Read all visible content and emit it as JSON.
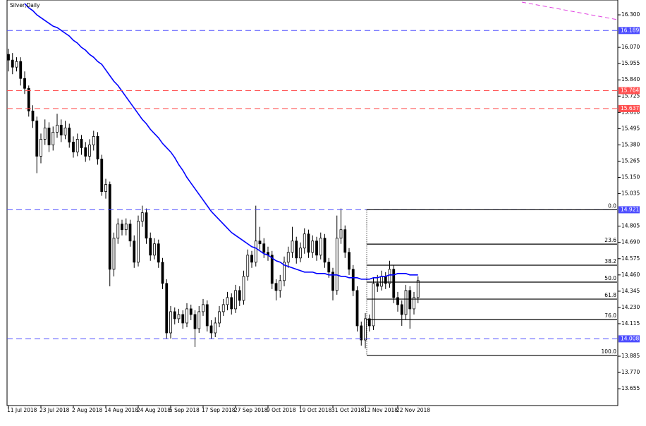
{
  "chart_data": {
    "type": "candlestick",
    "title": "Silver,Daily",
    "categories": [
      "11 Jul 2018",
      null,
      null,
      null,
      null,
      null,
      null,
      null,
      "23 Jul 2018",
      null,
      null,
      null,
      null,
      null,
      null,
      null,
      "2 Aug 2018",
      null,
      null,
      null,
      null,
      null,
      null,
      null,
      "14 Aug 2018",
      null,
      null,
      null,
      null,
      null,
      null,
      null,
      "24 Aug 2018",
      null,
      null,
      null,
      null,
      null,
      null,
      null,
      "5 Sep 2018",
      null,
      null,
      null,
      null,
      null,
      null,
      null,
      "17 Sep 2018",
      null,
      null,
      null,
      null,
      null,
      null,
      null,
      "27 Sep 2018",
      null,
      null,
      null,
      null,
      null,
      null,
      null,
      "9 Oct 2018",
      null,
      null,
      null,
      null,
      null,
      null,
      null,
      "19 Oct 2018",
      null,
      null,
      null,
      null,
      null,
      null,
      null,
      "31 Oct 2018",
      null,
      null,
      null,
      null,
      null,
      null,
      null,
      "12 Nov 2018",
      null,
      null,
      null,
      null,
      null,
      null,
      null,
      "22 Nov 2018",
      null,
      null,
      null,
      null,
      null
    ],
    "ohlc": [
      [
        16.02,
        16.06,
        15.9,
        15.98
      ],
      [
        15.98,
        16.03,
        15.88,
        15.93
      ],
      [
        15.93,
        16.0,
        15.9,
        15.97
      ],
      [
        15.97,
        16.0,
        15.8,
        15.85
      ],
      [
        15.85,
        15.9,
        15.74,
        15.78
      ],
      [
        15.78,
        15.8,
        15.58,
        15.62
      ],
      [
        15.62,
        15.66,
        15.5,
        15.55
      ],
      [
        15.55,
        15.58,
        15.18,
        15.3
      ],
      [
        15.3,
        15.46,
        15.25,
        15.42
      ],
      [
        15.42,
        15.56,
        15.38,
        15.5
      ],
      [
        15.5,
        15.54,
        15.33,
        15.38
      ],
      [
        15.38,
        15.51,
        15.34,
        15.47
      ],
      [
        15.47,
        15.6,
        15.43,
        15.52
      ],
      [
        15.52,
        15.56,
        15.4,
        15.45
      ],
      [
        15.45,
        15.55,
        15.42,
        15.5
      ],
      [
        15.5,
        15.53,
        15.36,
        15.4
      ],
      [
        15.4,
        15.44,
        15.29,
        15.33
      ],
      [
        15.33,
        15.46,
        15.3,
        15.42
      ],
      [
        15.42,
        15.45,
        15.31,
        15.36
      ],
      [
        15.36,
        15.4,
        15.26,
        15.3
      ],
      [
        15.3,
        15.42,
        15.27,
        15.38
      ],
      [
        15.38,
        15.48,
        15.34,
        15.44
      ],
      [
        15.44,
        15.47,
        15.24,
        15.28
      ],
      [
        15.28,
        15.31,
        15.02,
        15.05
      ],
      [
        15.05,
        15.14,
        15.0,
        15.1
      ],
      [
        15.1,
        15.12,
        14.38,
        14.5
      ],
      [
        14.5,
        14.76,
        14.45,
        14.72
      ],
      [
        14.72,
        14.86,
        14.68,
        14.82
      ],
      [
        14.82,
        14.85,
        14.74,
        14.78
      ],
      [
        14.78,
        14.86,
        14.74,
        14.82
      ],
      [
        14.82,
        14.85,
        14.66,
        14.7
      ],
      [
        14.7,
        14.74,
        14.51,
        14.55
      ],
      [
        14.55,
        14.88,
        14.52,
        14.84
      ],
      [
        14.84,
        14.95,
        14.8,
        14.9
      ],
      [
        14.9,
        14.93,
        14.68,
        14.72
      ],
      [
        14.72,
        14.76,
        14.56,
        14.6
      ],
      [
        14.6,
        14.72,
        14.57,
        14.68
      ],
      [
        14.68,
        14.71,
        14.51,
        14.55
      ],
      [
        14.55,
        14.58,
        14.36,
        14.4
      ],
      [
        14.4,
        14.43,
        14.01,
        14.05
      ],
      [
        14.05,
        14.24,
        14.01,
        14.2
      ],
      [
        14.2,
        14.23,
        14.11,
        14.15
      ],
      [
        14.15,
        14.22,
        14.12,
        14.18
      ],
      [
        14.18,
        14.21,
        14.08,
        14.12
      ],
      [
        14.12,
        14.26,
        14.09,
        14.22
      ],
      [
        14.22,
        14.25,
        14.14,
        14.18
      ],
      [
        14.18,
        14.21,
        13.95,
        14.08
      ],
      [
        14.08,
        14.24,
        14.05,
        14.2
      ],
      [
        14.2,
        14.29,
        14.17,
        14.25
      ],
      [
        14.25,
        14.28,
        14.06,
        14.1
      ],
      [
        14.1,
        14.14,
        14.01,
        14.05
      ],
      [
        14.05,
        14.16,
        14.02,
        14.12
      ],
      [
        14.12,
        14.24,
        14.09,
        14.2
      ],
      [
        14.2,
        14.29,
        14.17,
        14.25
      ],
      [
        14.25,
        14.34,
        14.21,
        14.3
      ],
      [
        14.3,
        14.33,
        14.18,
        14.22
      ],
      [
        14.22,
        14.39,
        14.19,
        14.35
      ],
      [
        14.35,
        14.38,
        14.24,
        14.28
      ],
      [
        14.28,
        14.49,
        14.25,
        14.45
      ],
      [
        14.45,
        14.64,
        14.42,
        14.6
      ],
      [
        14.6,
        14.63,
        14.51,
        14.55
      ],
      [
        14.55,
        14.95,
        14.52,
        14.7
      ],
      [
        14.7,
        14.8,
        14.64,
        14.68
      ],
      [
        14.68,
        14.72,
        14.58,
        14.62
      ],
      [
        14.62,
        14.66,
        14.56,
        14.6
      ],
      [
        14.6,
        14.63,
        14.36,
        14.4
      ],
      [
        14.4,
        14.43,
        14.28,
        14.35
      ],
      [
        14.35,
        14.46,
        14.3,
        14.42
      ],
      [
        14.42,
        14.59,
        14.38,
        14.55
      ],
      [
        14.55,
        14.66,
        14.51,
        14.62
      ],
      [
        14.62,
        14.8,
        14.58,
        14.7
      ],
      [
        14.7,
        14.73,
        14.54,
        14.58
      ],
      [
        14.58,
        14.69,
        14.55,
        14.65
      ],
      [
        14.65,
        14.79,
        14.61,
        14.75
      ],
      [
        14.75,
        14.78,
        14.58,
        14.62
      ],
      [
        14.62,
        14.74,
        14.58,
        14.7
      ],
      [
        14.7,
        14.73,
        14.56,
        14.6
      ],
      [
        14.6,
        14.76,
        14.57,
        14.72
      ],
      [
        14.72,
        14.75,
        14.51,
        14.55
      ],
      [
        14.55,
        14.58,
        14.44,
        14.48
      ],
      [
        14.48,
        14.51,
        14.28,
        14.35
      ],
      [
        14.35,
        14.88,
        14.32,
        14.72
      ],
      [
        14.72,
        14.93,
        14.68,
        14.78
      ],
      [
        14.78,
        14.81,
        14.58,
        14.62
      ],
      [
        14.62,
        14.65,
        14.46,
        14.5
      ],
      [
        14.5,
        14.53,
        14.31,
        14.35
      ],
      [
        14.35,
        14.38,
        14.06,
        14.1
      ],
      [
        14.1,
        14.13,
        13.96,
        14.0
      ],
      [
        14.0,
        14.19,
        13.94,
        14.15
      ],
      [
        14.15,
        14.18,
        14.06,
        14.1
      ],
      [
        14.1,
        14.44,
        14.07,
        14.4
      ],
      [
        14.4,
        14.46,
        14.34,
        14.38
      ],
      [
        14.38,
        14.49,
        14.35,
        14.45
      ],
      [
        14.45,
        14.48,
        14.36,
        14.4
      ],
      [
        14.4,
        14.56,
        14.37,
        14.5
      ],
      [
        14.5,
        14.53,
        14.26,
        14.3
      ],
      [
        14.3,
        14.34,
        14.2,
        14.25
      ],
      [
        14.25,
        14.28,
        14.1,
        14.18
      ],
      [
        14.18,
        14.39,
        14.14,
        14.35
      ],
      [
        14.35,
        14.38,
        14.08,
        14.22
      ],
      [
        14.22,
        14.34,
        14.18,
        14.3
      ],
      [
        14.3,
        14.45,
        14.26,
        14.42
      ]
    ],
    "moving_average": {
      "color": "#0000ff",
      "values": [
        null,
        null,
        null,
        null,
        16.38,
        16.35,
        16.33,
        16.3,
        16.28,
        16.26,
        16.24,
        16.22,
        16.21,
        16.19,
        16.17,
        16.15,
        16.12,
        16.1,
        16.07,
        16.05,
        16.02,
        16.0,
        15.97,
        15.95,
        15.91,
        15.87,
        15.83,
        15.8,
        15.76,
        15.72,
        15.68,
        15.64,
        15.6,
        15.56,
        15.53,
        15.49,
        15.46,
        15.43,
        15.39,
        15.36,
        15.33,
        15.29,
        15.24,
        15.2,
        15.15,
        15.11,
        15.07,
        15.03,
        14.99,
        14.95,
        14.91,
        14.88,
        14.85,
        14.82,
        14.79,
        14.76,
        14.74,
        14.72,
        14.7,
        14.68,
        14.66,
        14.65,
        14.63,
        14.61,
        14.6,
        14.58,
        14.56,
        14.55,
        14.53,
        14.52,
        14.51,
        14.5,
        14.49,
        14.48,
        14.48,
        14.48,
        14.47,
        14.47,
        14.47,
        14.46,
        14.46,
        14.46,
        14.45,
        14.45,
        14.44,
        14.44,
        14.44,
        14.43,
        14.43,
        14.43,
        14.44,
        14.44,
        14.45,
        14.45,
        14.46,
        14.46,
        14.47,
        14.47,
        14.47,
        14.46,
        14.46,
        14.46
      ]
    },
    "ylim": [
      13.536,
      16.405
    ],
    "yticks": [
      {
        "value": 16.3,
        "label": "16.300"
      },
      {
        "value": 16.07,
        "label": "16.070"
      },
      15.955,
      {
        "value": 15.84,
        "label": "15.840"
      },
      15.725,
      {
        "value": 15.61,
        "label": "15.610"
      },
      15.495,
      {
        "value": 15.38,
        "label": "15.380"
      },
      15.265,
      {
        "value": 15.15,
        "label": "15.150"
      },
      15.035,
      14.805,
      {
        "value": 14.69,
        "label": "14.690"
      },
      14.575,
      {
        "value": 14.46,
        "label": "14.460"
      },
      14.345,
      {
        "value": 14.23,
        "label": "14.230"
      },
      14.115,
      13.885,
      {
        "value": 13.77,
        "label": "13.770"
      },
      13.655
    ],
    "hlines": [
      {
        "value": 16.189,
        "color": "#4d4dff"
      },
      {
        "value": 15.764,
        "color": "#ff5050"
      },
      {
        "value": 15.637,
        "color": "#ff5050"
      },
      {
        "value": 14.921,
        "color": "#4d4dff"
      },
      {
        "value": 14.008,
        "color": "#4d4dff"
      }
    ],
    "fib_levels": [
      {
        "label": "0.0",
        "price": 14.921
      },
      {
        "label": "23.6",
        "price": 14.678
      },
      {
        "label": "38.2",
        "price": 14.529
      },
      {
        "label": "50.0",
        "price": 14.409
      },
      {
        "label": "61.8",
        "price": 14.289
      },
      {
        "label": "76.0",
        "price": 14.144
      },
      {
        "label": "100.0",
        "price": 13.89
      }
    ]
  }
}
